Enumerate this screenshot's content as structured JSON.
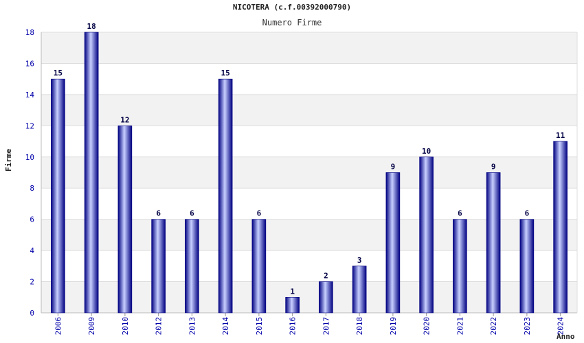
{
  "chart_data": {
    "type": "bar",
    "title": "NICOTERA (c.f.00392000790)",
    "subtitle": "Numero Firme",
    "xlabel": "Anno",
    "ylabel": "Firme",
    "categories": [
      "2006",
      "2009",
      "2010",
      "2012",
      "2013",
      "2014",
      "2015",
      "2016",
      "2017",
      "2018",
      "2019",
      "2020",
      "2021",
      "2022",
      "2023",
      "2024"
    ],
    "values": [
      15,
      18,
      12,
      6,
      6,
      15,
      6,
      1,
      2,
      3,
      9,
      10,
      6,
      9,
      6,
      11
    ],
    "ylim": [
      0,
      18
    ],
    "yticks": [
      "0",
      "2",
      "4",
      "6",
      "8",
      "10",
      "12",
      "14",
      "16",
      "18"
    ],
    "grid": true,
    "colors": {
      "bar_dark": "#000080",
      "bar_light": "#c8d0ff",
      "band": "#f2f2f2",
      "tick": "#0000aa"
    }
  }
}
